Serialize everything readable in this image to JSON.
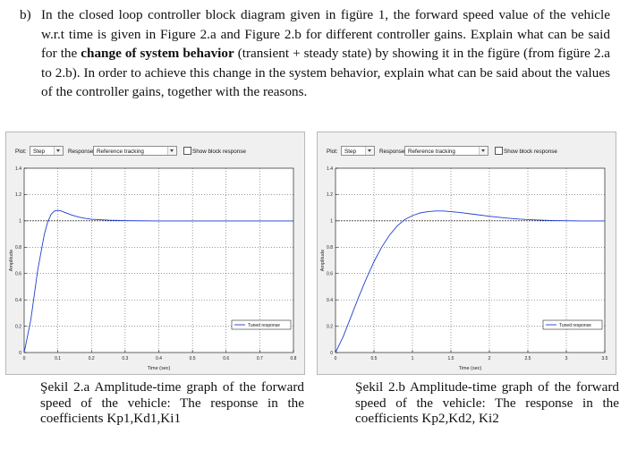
{
  "question": {
    "label": "b)",
    "text_before": "In the closed loop controller block diagram given in figüre 1, the forward speed value of the vehicle w.r.t time is given in Figure 2.a and Figure 2.b for different controller gains. Explain what can be said for the ",
    "emphasis": "change of system behavior",
    "text_after": " (transient + steady state) by showing it in the figüre (from figüre 2.a to 2.b). In order to achieve this change in the system behavior, explain what can be said about the values of the controller gains, together with the reasons."
  },
  "figures": [
    {
      "toolbar": {
        "plot_label": "Plot:",
        "plot_value": "Step",
        "response_label": "Response:",
        "response_value": "Reference tracking",
        "show_block_label": "Show block response"
      },
      "caption": "Şekil 2.a Amplitude-time graph of the forward speed of the vehicle: The response in the coefficients Kp1,Kd1,Ki1"
    },
    {
      "toolbar": {
        "plot_label": "Plot:",
        "plot_value": "Step",
        "response_label": "Response:",
        "response_value": "Reference tracking",
        "show_block_label": "Show block response"
      },
      "caption": "Şekil 2.b Amplitude-time graph of the forward speed of the vehicle: The response in the coefficients Kp2,Kd2, Ki2"
    }
  ],
  "colors": {
    "response_line": "#1f3fd0",
    "reference_line": "#000000",
    "grid": "#000000",
    "panel_bg": "#f0f0f0",
    "axes_bg": "#ffffff"
  },
  "chart_data": [
    {
      "type": "line",
      "title": "",
      "xlabel": "Time (sec)",
      "ylabel": "Amplitude",
      "xlim": [
        0,
        0.8
      ],
      "ylim": [
        0,
        1.4
      ],
      "xticks": [
        "0",
        "0.1",
        "0.2",
        "0.3",
        "0.4",
        "0.5",
        "0.6",
        "0.7",
        "0.8"
      ],
      "yticks": [
        "0",
        "0.2",
        "0.4",
        "0.6",
        "0.8",
        "1",
        "1.2",
        "1.4"
      ],
      "xtick_values": [
        0,
        0.1,
        0.2,
        0.3,
        0.4,
        0.5,
        0.6,
        0.7,
        0.8
      ],
      "ytick_values": [
        0,
        0.2,
        0.4,
        0.6,
        0.8,
        1,
        1.2,
        1.4
      ],
      "grid": true,
      "legend": [
        "Tuned response"
      ],
      "legend_position": "bottom-right",
      "reference": 1.0,
      "series": [
        {
          "name": "Tuned response",
          "x": [
            0,
            0.02,
            0.04,
            0.06,
            0.07,
            0.08,
            0.09,
            0.1,
            0.11,
            0.12,
            0.14,
            0.16,
            0.18,
            0.2,
            0.25,
            0.3,
            0.4,
            0.5,
            0.6,
            0.7,
            0.8
          ],
          "y": [
            0,
            0.25,
            0.62,
            0.9,
            0.99,
            1.05,
            1.075,
            1.08,
            1.075,
            1.065,
            1.045,
            1.03,
            1.02,
            1.012,
            1.005,
            1.002,
            1.0,
            1.0,
            1.0,
            1.0,
            1.0
          ]
        }
      ]
    },
    {
      "type": "line",
      "title": "",
      "xlabel": "Time (sec)",
      "ylabel": "Amplitude",
      "xlim": [
        0,
        3.5
      ],
      "ylim": [
        0,
        1.4
      ],
      "xticks": [
        "0",
        "0.5",
        "1",
        "1.5",
        "2",
        "2.5",
        "3",
        "3.5"
      ],
      "yticks": [
        "0",
        "0.2",
        "0.4",
        "0.6",
        "0.8",
        "1",
        "1.2",
        "1.4"
      ],
      "xtick_values": [
        0,
        0.5,
        1,
        1.5,
        2,
        2.5,
        3,
        3.5
      ],
      "ytick_values": [
        0,
        0.2,
        0.4,
        0.6,
        0.8,
        1,
        1.2,
        1.4
      ],
      "grid": true,
      "legend": [
        "Tuned response"
      ],
      "legend_position": "bottom-right",
      "reference": 1.0,
      "series": [
        {
          "name": "Tuned response",
          "x": [
            0,
            0.1,
            0.2,
            0.3,
            0.4,
            0.5,
            0.6,
            0.7,
            0.8,
            0.9,
            1.0,
            1.1,
            1.2,
            1.3,
            1.4,
            1.5,
            1.6,
            1.8,
            2.0,
            2.2,
            2.4,
            2.6,
            2.8,
            3.0,
            3.2,
            3.5
          ],
          "y": [
            0,
            0.12,
            0.27,
            0.42,
            0.56,
            0.69,
            0.8,
            0.89,
            0.96,
            1.01,
            1.04,
            1.06,
            1.07,
            1.075,
            1.075,
            1.07,
            1.065,
            1.05,
            1.035,
            1.022,
            1.013,
            1.007,
            1.003,
            1.001,
            1.0,
            1.0
          ]
        }
      ]
    }
  ]
}
